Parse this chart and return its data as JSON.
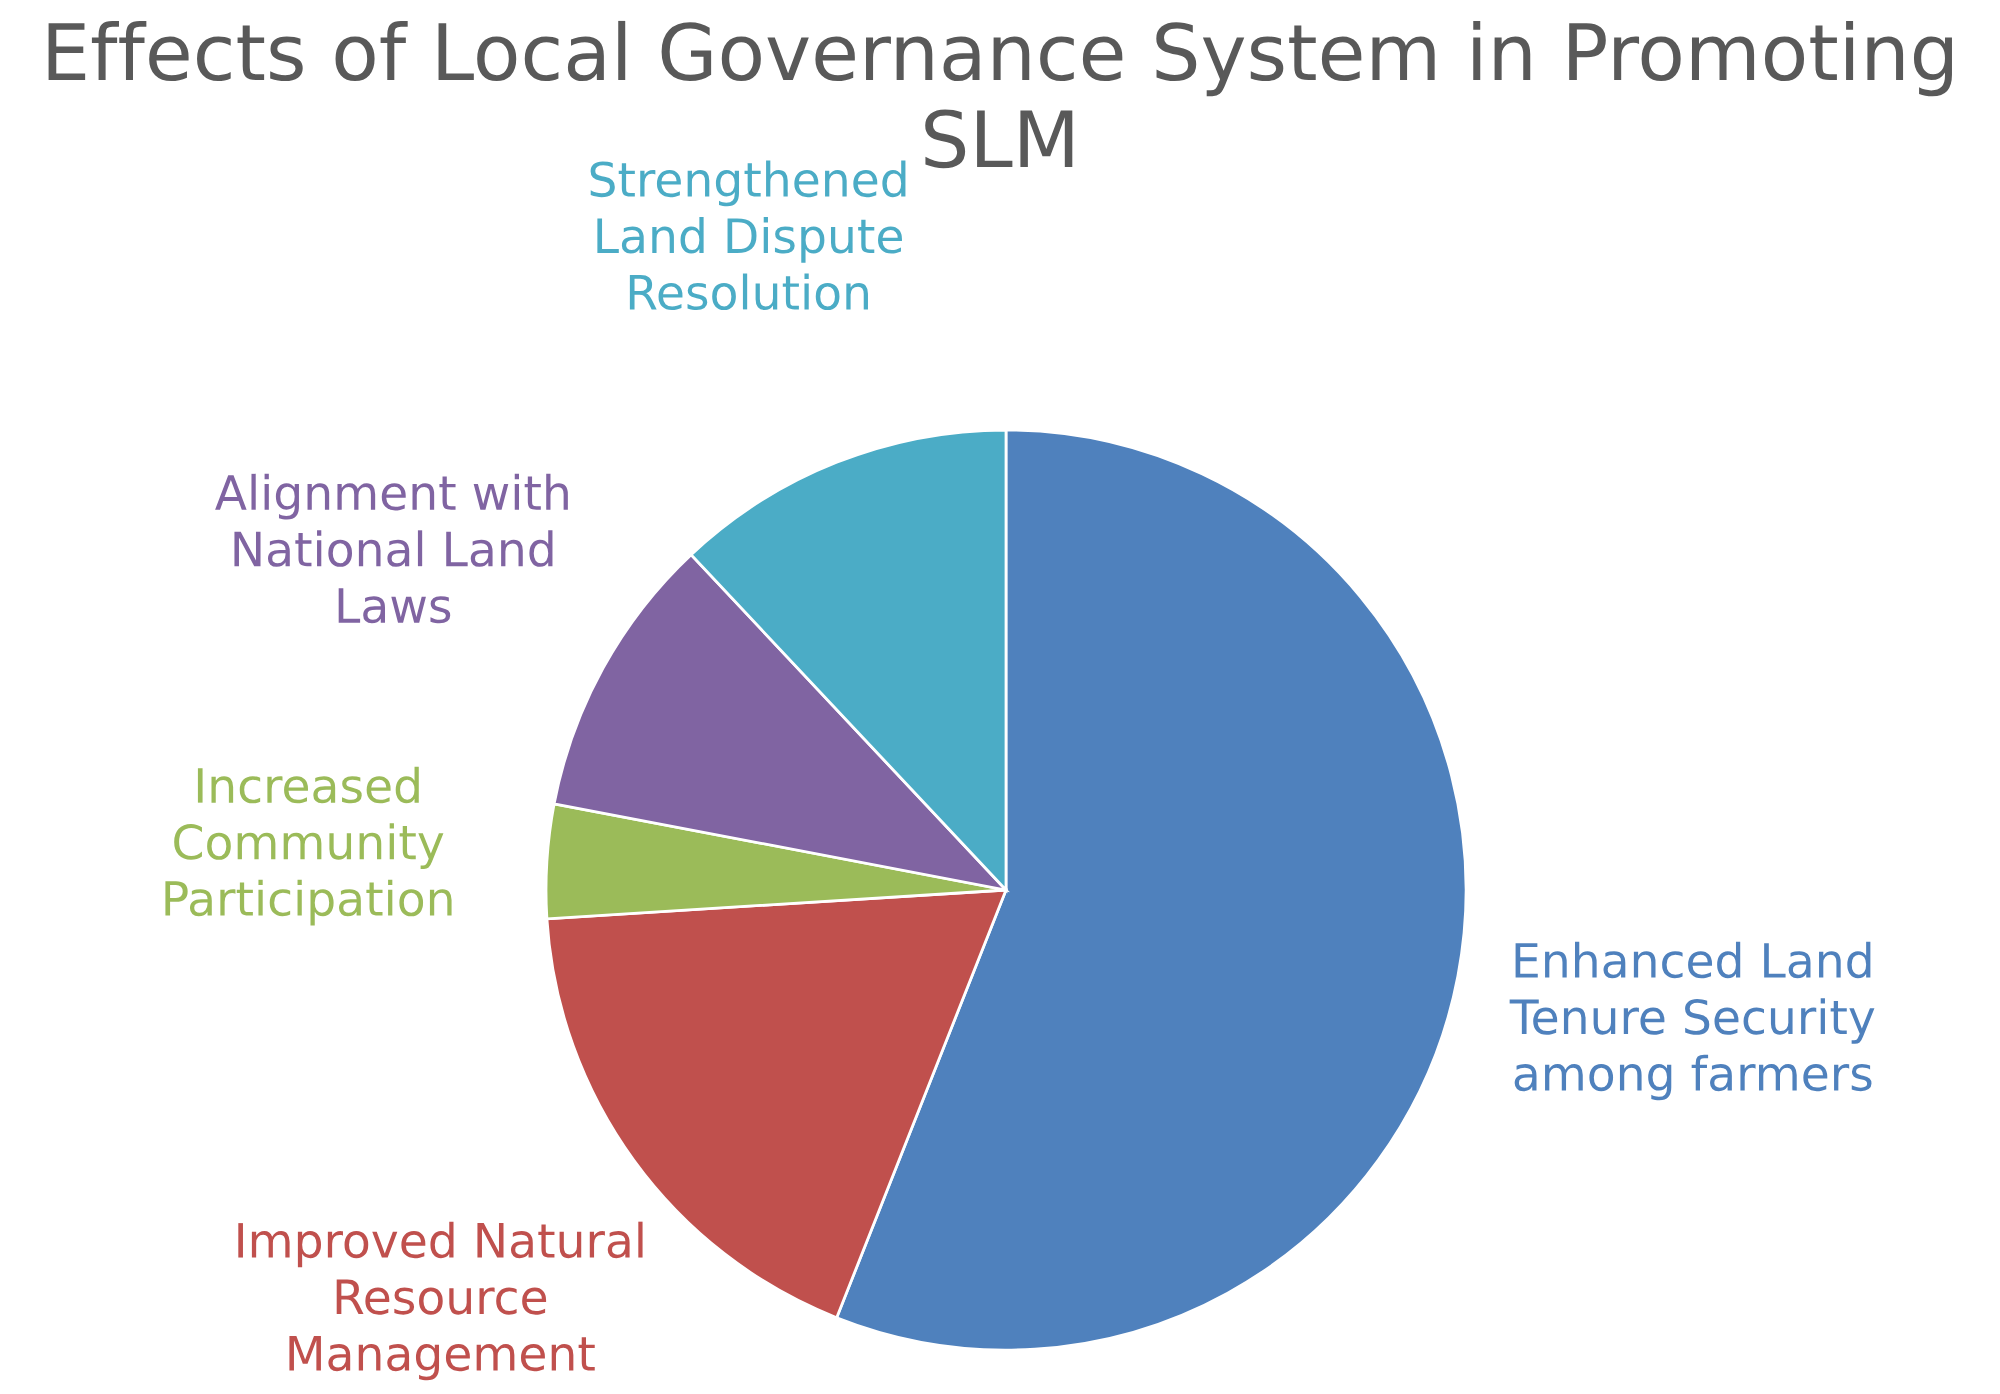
{
  "chart_data": {
    "type": "pie",
    "title": "Effects of Local Governance System in Promoting SLM",
    "categories": [
      "Enhanced Land Tenure Security among farmers",
      "Improved Natural Resource Management",
      "Increased Community Participation",
      "Alignment with National Land Laws",
      "Strengthened Land Dispute Resolution"
    ],
    "values": [
      56,
      18,
      4,
      10,
      12
    ],
    "colors": [
      "#4f81bd",
      "#c0504d",
      "#9bbb59",
      "#8064a2",
      "#4bacc6"
    ]
  }
}
